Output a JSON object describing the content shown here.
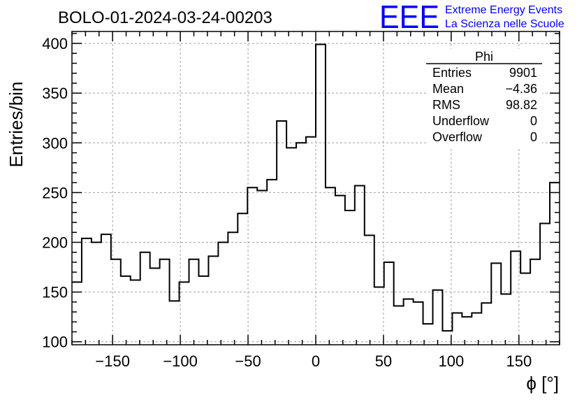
{
  "chart_data": {
    "type": "bar",
    "style": "step-histogram",
    "title": "BOLO-01-2024-03-24-00203",
    "xlabel": "ϕ [°]",
    "ylabel": "Entries/bin",
    "xlim": [
      -180,
      180
    ],
    "ylim": [
      97,
      412
    ],
    "bin_width": 7.2,
    "x_ticks": [
      -150,
      -100,
      -50,
      0,
      50,
      100,
      150
    ],
    "x_tick_labels": [
      "−150",
      "−100",
      "−50",
      "0",
      "50",
      "100",
      "150"
    ],
    "y_ticks": [
      100,
      150,
      200,
      250,
      300,
      350,
      400
    ],
    "y_tick_labels": [
      "100",
      "150",
      "200",
      "250",
      "300",
      "350",
      "400"
    ],
    "grid": true,
    "bin_edges_start": -180,
    "series": [
      {
        "values": [
          160,
          204,
          200,
          208,
          183,
          166,
          162,
          190,
          174,
          183,
          141,
          160,
          183,
          166,
          186,
          200,
          210,
          229,
          255,
          252,
          263,
          322,
          295,
          300,
          306,
          399,
          255,
          247,
          232,
          257,
          207,
          155,
          180,
          136,
          143,
          140,
          118,
          152,
          111,
          129,
          125,
          129,
          139,
          179,
          148,
          191,
          169,
          183,
          219,
          260
        ]
      }
    ]
  },
  "stats_box": {
    "title": "Phi",
    "rows": [
      {
        "label": "Entries",
        "value": "9901"
      },
      {
        "label": "Mean",
        "value": "−4.36"
      },
      {
        "label": "RMS",
        "value": "98.82"
      },
      {
        "label": "Underflow",
        "value": "0"
      },
      {
        "label": "Overflow",
        "value": "0"
      }
    ]
  },
  "logo": {
    "text": "EEE",
    "line1": "Extreme Energy Events",
    "line2": "La Scienza nelle Scuole",
    "color": "#0000ff"
  },
  "colors": {
    "histogram": "#000000",
    "grid": "#a0a0a0",
    "logo": "#0000ff"
  }
}
